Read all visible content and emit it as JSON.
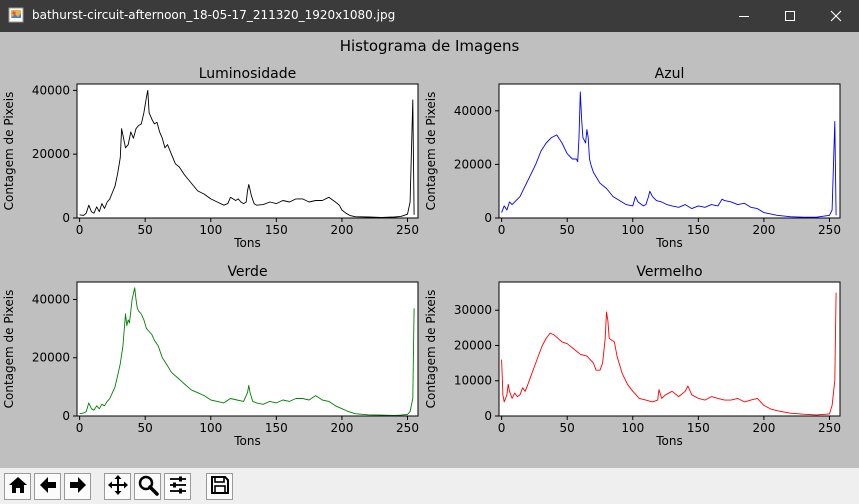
{
  "window": {
    "title": "bathurst-circuit-afternoon_18-05-17_211320_1920x1080.jpg",
    "app_icon": "image-file-icon",
    "controls": [
      "minimize-icon",
      "maximize-icon",
      "close-icon"
    ]
  },
  "figure": {
    "suptitle": "Histograma de Imagens",
    "background": "#bfbfbf"
  },
  "toolbar": {
    "buttons": [
      {
        "name": "home-button",
        "icon": "home-icon"
      },
      {
        "name": "back-button",
        "icon": "arrow-left-icon"
      },
      {
        "name": "forward-button",
        "icon": "arrow-right-icon"
      },
      {
        "name": "pan-button",
        "icon": "move-icon"
      },
      {
        "name": "zoom-button",
        "icon": "magnifier-icon"
      },
      {
        "name": "configure-subplots-button",
        "icon": "sliders-icon"
      },
      {
        "name": "save-button",
        "icon": "floppy-disk-icon"
      }
    ]
  },
  "chart_data": [
    {
      "type": "line",
      "title": "Luminosidade",
      "xlabel": "Tons",
      "ylabel": "Contagem de Pixeis",
      "color": "#000000",
      "xlim": [
        -2,
        258
      ],
      "ylim": [
        0,
        42000
      ],
      "xticks": [
        0,
        50,
        100,
        150,
        200,
        250
      ],
      "yticks": [
        0,
        20000,
        40000
      ],
      "ytick_labels": [
        "0",
        "20000",
        "40000"
      ],
      "x": [
        0,
        3,
        5,
        7,
        9,
        11,
        13,
        15,
        17,
        19,
        21,
        23,
        25,
        27,
        29,
        31,
        32,
        33,
        35,
        37,
        39,
        41,
        43,
        45,
        47,
        49,
        51,
        52,
        53,
        55,
        57,
        59,
        61,
        63,
        65,
        67,
        70,
        73,
        76,
        80,
        85,
        90,
        95,
        100,
        105,
        110,
        113,
        115,
        117,
        119,
        121,
        123,
        125,
        127,
        128,
        129,
        131,
        133,
        135,
        140,
        145,
        150,
        155,
        160,
        165,
        170,
        175,
        180,
        185,
        190,
        195,
        198,
        200,
        203,
        206,
        210,
        220,
        230,
        240,
        245,
        250,
        252,
        254,
        255
      ],
      "y": [
        1000,
        800,
        1500,
        4000,
        2000,
        1500,
        3500,
        2000,
        4500,
        3000,
        5000,
        6000,
        8000,
        10000,
        14000,
        19000,
        28000,
        26000,
        22000,
        23000,
        27000,
        25000,
        28000,
        29000,
        29500,
        33000,
        38000,
        40000,
        33000,
        31000,
        29500,
        30000,
        27000,
        25000,
        22000,
        23000,
        20000,
        17000,
        16000,
        13500,
        11000,
        8500,
        7500,
        6000,
        5000,
        4000,
        4500,
        6500,
        6000,
        5500,
        6000,
        5000,
        4500,
        5000,
        8500,
        10500,
        7000,
        4500,
        4000,
        4200,
        5000,
        4500,
        5500,
        5000,
        6000,
        6000,
        5000,
        5500,
        5500,
        6500,
        5000,
        4000,
        2500,
        1500,
        800,
        400,
        300,
        200,
        300,
        500,
        1200,
        5000,
        37000,
        1000
      ]
    },
    {
      "type": "line",
      "title": "Azul",
      "xlabel": "Tons",
      "ylabel": "Contagem de Pixeis",
      "color": "#0000ff",
      "xlim": [
        -2,
        258
      ],
      "ylim": [
        0,
        50000
      ],
      "xticks": [
        0,
        50,
        100,
        150,
        200,
        250
      ],
      "yticks": [
        0,
        20000,
        40000
      ],
      "ytick_labels": [
        "0",
        "20000",
        "40000"
      ],
      "x": [
        0,
        2,
        4,
        6,
        8,
        10,
        14,
        18,
        22,
        26,
        30,
        34,
        38,
        42,
        46,
        50,
        54,
        57,
        58,
        59,
        60,
        61,
        62,
        63,
        64,
        65,
        66,
        67,
        68,
        70,
        75,
        80,
        85,
        90,
        95,
        100,
        102,
        104,
        108,
        110,
        112,
        113,
        115,
        118,
        122,
        126,
        130,
        135,
        140,
        145,
        150,
        155,
        160,
        165,
        168,
        170,
        175,
        180,
        185,
        190,
        195,
        200,
        210,
        220,
        230,
        240,
        250,
        252,
        254,
        255
      ],
      "y": [
        2000,
        4500,
        3000,
        6000,
        5000,
        6000,
        8000,
        12000,
        16000,
        20000,
        25000,
        28000,
        30000,
        31000,
        28000,
        24000,
        22000,
        22000,
        21000,
        30000,
        47000,
        37000,
        30000,
        29000,
        28000,
        33000,
        30000,
        22000,
        20000,
        17000,
        13000,
        11000,
        8000,
        6500,
        5000,
        4500,
        8000,
        6000,
        4500,
        5000,
        8000,
        10000,
        8000,
        6500,
        6000,
        5000,
        4500,
        4000,
        5000,
        3500,
        4500,
        4000,
        5000,
        4500,
        7000,
        6500,
        6000,
        5000,
        5500,
        4000,
        3500,
        2000,
        1000,
        500,
        300,
        300,
        1000,
        3000,
        36000,
        1000
      ]
    },
    {
      "type": "line",
      "title": "Verde",
      "xlabel": "Tons",
      "ylabel": "Contagem de Pixeis",
      "color": "#008000",
      "xlim": [
        -2,
        258
      ],
      "ylim": [
        0,
        46000
      ],
      "xticks": [
        0,
        50,
        100,
        150,
        200,
        250
      ],
      "yticks": [
        0,
        20000,
        40000
      ],
      "ytick_labels": [
        "0",
        "20000",
        "40000"
      ],
      "x": [
        0,
        3,
        5,
        7,
        9,
        11,
        13,
        15,
        17,
        19,
        21,
        23,
        25,
        27,
        29,
        31,
        33,
        35,
        36,
        37,
        38,
        39,
        40,
        41,
        42,
        43,
        44,
        45,
        47,
        49,
        51,
        53,
        55,
        57,
        60,
        63,
        66,
        70,
        75,
        80,
        85,
        90,
        95,
        100,
        105,
        110,
        115,
        120,
        125,
        128,
        129,
        130,
        132,
        135,
        140,
        145,
        150,
        155,
        160,
        165,
        170,
        175,
        180,
        185,
        190,
        195,
        200,
        205,
        210,
        220,
        230,
        240,
        245,
        250,
        252,
        254,
        255
      ],
      "y": [
        800,
        1000,
        1500,
        4500,
        2500,
        2000,
        3500,
        2500,
        4000,
        3500,
        5000,
        6000,
        8000,
        10000,
        14000,
        18000,
        24000,
        35000,
        31000,
        33000,
        32000,
        36000,
        40000,
        42000,
        44000,
        40000,
        37000,
        36000,
        35000,
        33000,
        30000,
        29000,
        28000,
        26000,
        24000,
        20000,
        18000,
        15000,
        13000,
        11000,
        9000,
        8000,
        7000,
        5500,
        5000,
        4500,
        6000,
        5500,
        5000,
        8000,
        10500,
        8000,
        5000,
        4500,
        4000,
        5000,
        4500,
        5500,
        5000,
        6000,
        6000,
        5500,
        7000,
        5500,
        5000,
        3500,
        2500,
        1500,
        800,
        400,
        300,
        200,
        300,
        500,
        1500,
        6000,
        37000
      ]
    },
    {
      "type": "line",
      "title": "Vermelho",
      "xlabel": "Tons",
      "ylabel": "Contagem de Pixeis",
      "color": "#ff0000",
      "xlim": [
        -2,
        258
      ],
      "ylim": [
        0,
        38000
      ],
      "xticks": [
        0,
        50,
        100,
        150,
        200,
        250
      ],
      "yticks": [
        0,
        10000,
        20000,
        30000
      ],
      "ytick_labels": [
        "0",
        "10000",
        "20000",
        "30000"
      ],
      "x": [
        0,
        1,
        2,
        3,
        4,
        5,
        6,
        8,
        10,
        12,
        14,
        16,
        18,
        20,
        22,
        25,
        28,
        31,
        34,
        37,
        40,
        43,
        46,
        50,
        55,
        60,
        65,
        70,
        72,
        75,
        77,
        79,
        80,
        81,
        82,
        84,
        86,
        88,
        92,
        96,
        100,
        105,
        110,
        115,
        119,
        120,
        122,
        125,
        130,
        135,
        140,
        142,
        145,
        150,
        155,
        160,
        165,
        170,
        175,
        180,
        185,
        190,
        195,
        200,
        205,
        210,
        220,
        230,
        240,
        250,
        252,
        254,
        255
      ],
      "y": [
        16000,
        6000,
        4000,
        5000,
        6000,
        9000,
        7000,
        5000,
        6500,
        5500,
        6000,
        8000,
        7000,
        9000,
        11000,
        14000,
        17000,
        20000,
        22000,
        23500,
        23000,
        22000,
        21000,
        20500,
        19000,
        17500,
        17000,
        15000,
        13000,
        13000,
        15000,
        22000,
        29500,
        27000,
        22000,
        21500,
        21000,
        17000,
        12000,
        9000,
        7000,
        5000,
        4500,
        4000,
        4500,
        7500,
        5000,
        6000,
        7000,
        5500,
        7000,
        8500,
        6000,
        5000,
        4500,
        5500,
        5000,
        4500,
        4500,
        5000,
        4000,
        4500,
        5000,
        3000,
        2000,
        1500,
        800,
        500,
        300,
        600,
        3000,
        10000,
        35000
      ]
    }
  ]
}
